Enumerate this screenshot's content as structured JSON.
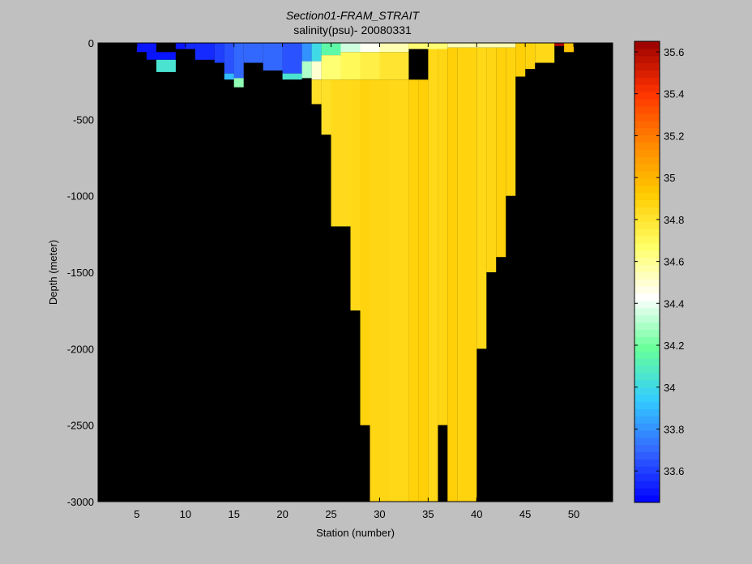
{
  "chart_data": {
    "type": "heatmap",
    "title": "Section01-FRAM_STRAIT",
    "subtitle": "salinity(psu)- 20080331",
    "xlabel": "Station (number)",
    "ylabel": "Depth (meter)",
    "xlim": [
      1,
      54
    ],
    "ylim": [
      -3000,
      0
    ],
    "xticks": [
      5,
      10,
      15,
      20,
      25,
      30,
      35,
      40,
      45,
      50
    ],
    "yticks": [
      0,
      -500,
      -1000,
      -1500,
      -2000,
      -2500,
      -3000
    ],
    "colorbar": {
      "range": [
        33.45,
        35.65
      ],
      "ticks": [
        33.6,
        33.8,
        34,
        34.2,
        34.4,
        34.6,
        34.8,
        35,
        35.2,
        35.4,
        35.6
      ],
      "colormap": [
        "#0000ff",
        "#3366ff",
        "#33ccff",
        "#66ff99",
        "#ffffff",
        "#ffff66",
        "#ffcc00",
        "#ff8800",
        "#ff3300",
        "#990000"
      ]
    },
    "background_color": "#000000",
    "cells": [
      {
        "x": [
          5,
          7
        ],
        "y": [
          0,
          -60
        ],
        "v": 33.5
      },
      {
        "x": [
          6,
          9
        ],
        "y": [
          -60,
          -110
        ],
        "v": 33.5
      },
      {
        "x": [
          7,
          9
        ],
        "y": [
          -110,
          -190
        ],
        "v": 34.05
      },
      {
        "x": [
          9,
          10
        ],
        "y": [
          0,
          -40
        ],
        "v": 33.5
      },
      {
        "x": [
          10,
          11
        ],
        "y": [
          0,
          -40
        ],
        "v": 33.55
      },
      {
        "x": [
          11,
          13
        ],
        "y": [
          0,
          -110
        ],
        "v": 33.55
      },
      {
        "x": [
          13,
          14
        ],
        "y": [
          0,
          -130
        ],
        "v": 33.6
      },
      {
        "x": [
          14,
          15
        ],
        "y": [
          0,
          -200
        ],
        "v": 33.65
      },
      {
        "x": [
          14,
          15
        ],
        "y": [
          -200,
          -240
        ],
        "v": 33.9
      },
      {
        "x": [
          15,
          16
        ],
        "y": [
          0,
          -230
        ],
        "v": 33.7
      },
      {
        "x": [
          15,
          16
        ],
        "y": [
          -230,
          -290
        ],
        "v": 34.25
      },
      {
        "x": [
          16,
          18
        ],
        "y": [
          0,
          -130
        ],
        "v": 33.7
      },
      {
        "x": [
          18,
          20
        ],
        "y": [
          0,
          -180
        ],
        "v": 33.7
      },
      {
        "x": [
          20,
          22
        ],
        "y": [
          0,
          -200
        ],
        "v": 33.65
      },
      {
        "x": [
          20,
          22
        ],
        "y": [
          -200,
          -240
        ],
        "v": 34.05
      },
      {
        "x": [
          22,
          23
        ],
        "y": [
          0,
          -120
        ],
        "v": 33.8
      },
      {
        "x": [
          22,
          23
        ],
        "y": [
          -120,
          -230
        ],
        "v": 34.3
      },
      {
        "x": [
          23,
          24
        ],
        "y": [
          0,
          -120
        ],
        "v": 34.0
      },
      {
        "x": [
          23,
          24
        ],
        "y": [
          -120,
          -240
        ],
        "v": 34.5
      },
      {
        "x": [
          24,
          26
        ],
        "y": [
          0,
          -80
        ],
        "v": 34.15
      },
      {
        "x": [
          24,
          26
        ],
        "y": [
          -80,
          -240
        ],
        "v": 34.65
      },
      {
        "x": [
          26,
          28
        ],
        "y": [
          0,
          -60
        ],
        "v": 34.35
      },
      {
        "x": [
          26,
          28
        ],
        "y": [
          -60,
          -240
        ],
        "v": 34.7
      },
      {
        "x": [
          28,
          30
        ],
        "y": [
          0,
          -60
        ],
        "v": 34.45
      },
      {
        "x": [
          28,
          30
        ],
        "y": [
          -60,
          -240
        ],
        "v": 34.75
      },
      {
        "x": [
          30,
          33
        ],
        "y": [
          0,
          -60
        ],
        "v": 34.55
      },
      {
        "x": [
          30,
          33
        ],
        "y": [
          -60,
          -240
        ],
        "v": 34.8
      },
      {
        "x": [
          33,
          37
        ],
        "y": [
          0,
          -40
        ],
        "v": 34.65
      },
      {
        "x": [
          37,
          44
        ],
        "y": [
          0,
          -30
        ],
        "v": 34.55
      },
      {
        "x": [
          23,
          24
        ],
        "y": [
          -240,
          -400
        ],
        "v": 34.82
      },
      {
        "x": [
          24,
          25
        ],
        "y": [
          -240,
          -600
        ],
        "v": 34.82
      },
      {
        "x": [
          25,
          27
        ],
        "y": [
          -240,
          -1200
        ],
        "v": 34.85
      },
      {
        "x": [
          27,
          28
        ],
        "y": [
          -240,
          -1750
        ],
        "v": 34.86
      },
      {
        "x": [
          28,
          29
        ],
        "y": [
          -240,
          -2500
        ],
        "v": 34.88
      },
      {
        "x": [
          29,
          31
        ],
        "y": [
          -240,
          -3000
        ],
        "v": 34.87
      },
      {
        "x": [
          31,
          33
        ],
        "y": [
          -240,
          -3000
        ],
        "v": 34.86
      },
      {
        "x": [
          33,
          34
        ],
        "y": [
          -240,
          -3000
        ],
        "v": 34.89
      },
      {
        "x": [
          34,
          35
        ],
        "y": [
          -240,
          -3000
        ],
        "v": 34.9
      },
      {
        "x": [
          35,
          36
        ],
        "y": [
          -40,
          -3000
        ],
        "v": 34.86
      },
      {
        "x": [
          36,
          37
        ],
        "y": [
          -40,
          -2500
        ],
        "v": 34.87
      },
      {
        "x": [
          37,
          38
        ],
        "y": [
          -30,
          -3000
        ],
        "v": 34.9
      },
      {
        "x": [
          38,
          40
        ],
        "y": [
          -30,
          -3000
        ],
        "v": 34.88
      },
      {
        "x": [
          40,
          41
        ],
        "y": [
          -30,
          -2000
        ],
        "v": 34.86
      },
      {
        "x": [
          41,
          42
        ],
        "y": [
          -30,
          -1500
        ],
        "v": 34.87
      },
      {
        "x": [
          42,
          43
        ],
        "y": [
          -30,
          -1400
        ],
        "v": 34.89
      },
      {
        "x": [
          43,
          44
        ],
        "y": [
          -30,
          -1000
        ],
        "v": 34.88
      },
      {
        "x": [
          44,
          45
        ],
        "y": [
          0,
          -220
        ],
        "v": 34.9
      },
      {
        "x": [
          45,
          46
        ],
        "y": [
          0,
          -170
        ],
        "v": 34.88
      },
      {
        "x": [
          46,
          48
        ],
        "y": [
          0,
          -130
        ],
        "v": 34.86
      },
      {
        "x": [
          48,
          49
        ],
        "y": [
          0,
          -20
        ],
        "v": 35.6
      },
      {
        "x": [
          49,
          50
        ],
        "y": [
          0,
          -60
        ],
        "v": 34.95
      }
    ]
  }
}
